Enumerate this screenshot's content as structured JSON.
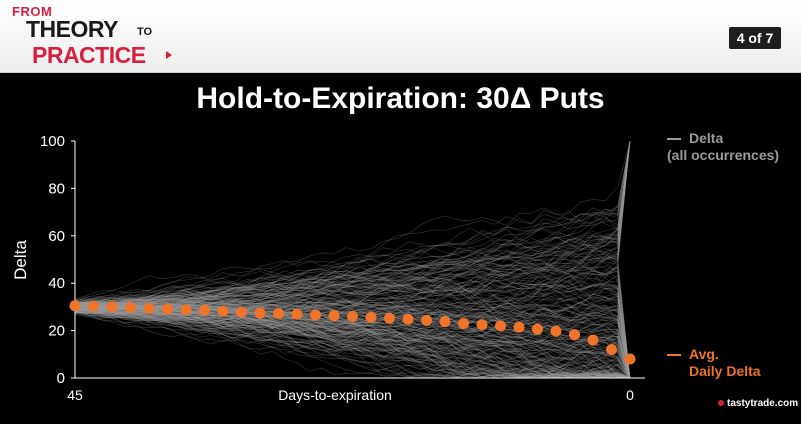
{
  "header": {
    "logo_from": "FROM",
    "logo_theory": "THEORY",
    "logo_to": "TO",
    "logo_practice": "PRACTICE",
    "page_indicator": "4 of 7"
  },
  "slide_title": "Hold-to-Expiration: 30Δ Puts",
  "legend": {
    "delta_line1": "Delta",
    "delta_line2": "(all occurrences)",
    "avg_line1": "Avg.",
    "avg_line2": "Daily Delta"
  },
  "brand": "tastytrade.com",
  "colors": {
    "avg_marker": "#f0732a",
    "delta_lines": "#9a9a9a",
    "brand_red": "#d81f3e",
    "background": "#000000"
  },
  "chart_data": {
    "type": "line",
    "title": "Hold-to-Expiration: 30Δ Puts",
    "xlabel": "Days-to-expiration",
    "ylabel": "Delta",
    "x_tick_labels": [
      "45",
      "0"
    ],
    "xlim": [
      45,
      0
    ],
    "ylim": [
      0,
      100
    ],
    "y_ticks": [
      0,
      20,
      40,
      60,
      80,
      100
    ],
    "series": [
      {
        "name": "Avg. Daily Delta",
        "style": "markers",
        "x": [
          45,
          43.5,
          42,
          40.5,
          39,
          37.5,
          36,
          34.5,
          33,
          31.5,
          30,
          28.5,
          27,
          25.5,
          24,
          22.5,
          21,
          19.5,
          18,
          16.5,
          15,
          13.5,
          12,
          10.5,
          9,
          7.5,
          6,
          4.5,
          3,
          1.5,
          0
        ],
        "values": [
          30.5,
          30.3,
          30,
          29.7,
          29.4,
          29.1,
          28.8,
          28.6,
          28.2,
          27.8,
          27.4,
          27.2,
          26.9,
          26.6,
          26.3,
          26.0,
          25.6,
          25.2,
          24.8,
          24.3,
          23.8,
          23.0,
          22.5,
          22.0,
          21.4,
          20.6,
          19.8,
          18.3,
          16.0,
          12.0,
          8.0
        ]
      },
      {
        "name": "Delta (all occurrences)",
        "style": "many faint lines",
        "start_value": 30,
        "range": [
          0,
          100
        ]
      }
    ],
    "grid": false,
    "legend_position": "right"
  }
}
